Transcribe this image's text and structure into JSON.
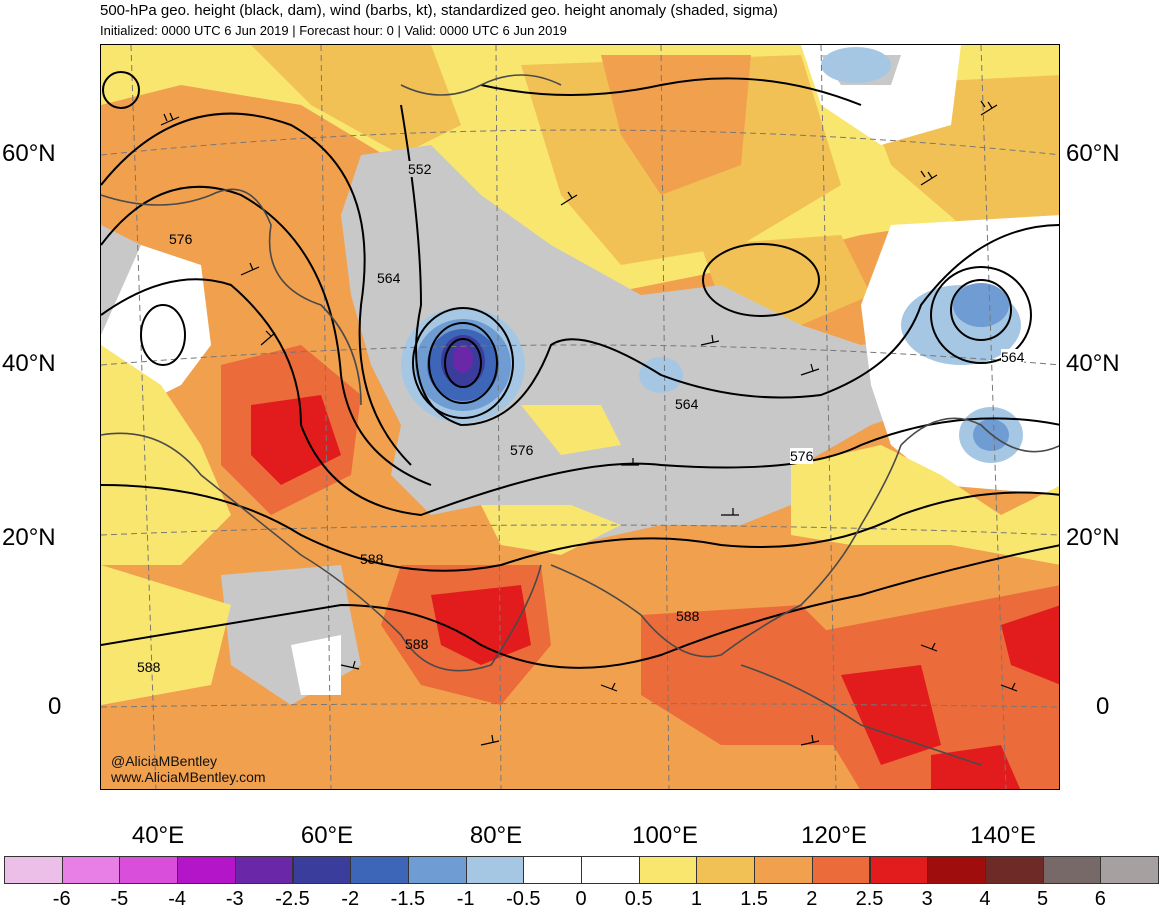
{
  "header": {
    "title": "500-hPa geo. height (black, dam), wind (barbs, kt), standardized geo. height anomaly (shaded, sigma)",
    "subtitle": "Initialized: 0000 UTC 6 Jun 2019 | Forecast hour: 0 | Valid: 0000 UTC 6 Jun 2019"
  },
  "map": {
    "lat_labels": [
      "60°N",
      "40°N",
      "20°N",
      "0"
    ],
    "lon_labels": [
      "40°E",
      "60°E",
      "80°E",
      "100°E",
      "120°E",
      "140°E"
    ],
    "contour_labels": [
      "552",
      "576",
      "564",
      "564",
      "564",
      "576",
      "576",
      "588",
      "588",
      "588",
      "588"
    ],
    "credit_handle": "@AliciaMBentley",
    "credit_site": "www.AliciaMBentley.com"
  },
  "colorbar": {
    "labels": [
      "-6",
      "-5",
      "-4",
      "-3",
      "-2.5",
      "-2",
      "-1.5",
      "-1",
      "-0.5",
      "0",
      "0.5",
      "1",
      "1.5",
      "2",
      "2.5",
      "3",
      "4",
      "5",
      "6"
    ],
    "colors": [
      "#ecbfe9",
      "#e77fe7",
      "#d94fdc",
      "#b515c8",
      "#6a28a9",
      "#3b3d9c",
      "#3d66b8",
      "#6f9cd3",
      "#a6c7e4",
      "#ffffff",
      "#ffffff",
      "#f9e66f",
      "#f2c155",
      "#f1a04e",
      "#ec6b3a",
      "#e21c1c",
      "#a00d0d",
      "#6d2a26",
      "#766967",
      "#a7a0a0"
    ]
  }
}
